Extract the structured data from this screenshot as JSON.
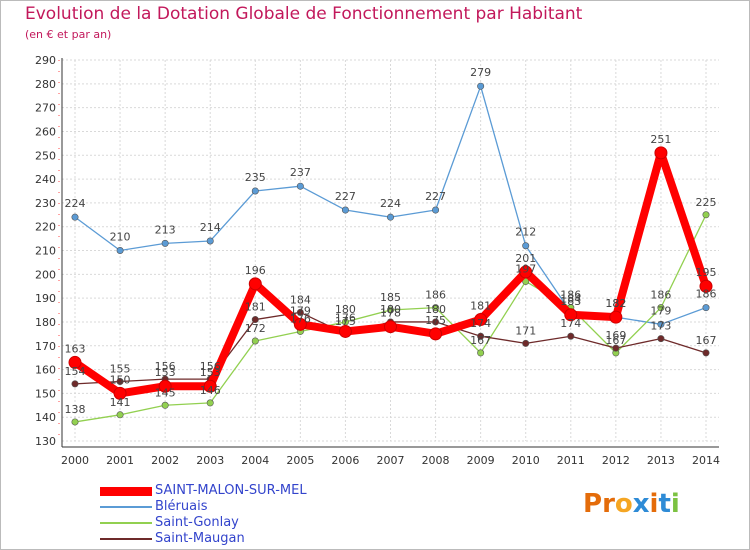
{
  "header": {
    "title": "Evolution de la Dotation Globale de Fonctionnement par Habitant",
    "subtitle": "(en € et par an)"
  },
  "logo": {
    "text": "Proxiti",
    "colors": [
      "#e46c0a",
      "#e46c0a",
      "#f5a623",
      "#2e8bd6",
      "#e46c0a",
      "#2e8bd6",
      "#7cc242"
    ]
  },
  "chart_data": {
    "type": "line",
    "x": [
      "2000",
      "2001",
      "2002",
      "2003",
      "2004",
      "2005",
      "2006",
      "2007",
      "2008",
      "2009",
      "2010",
      "2011",
      "2012",
      "2013",
      "2014"
    ],
    "ylim": [
      130,
      290
    ],
    "yticks": [
      130,
      140,
      150,
      160,
      170,
      180,
      190,
      200,
      210,
      220,
      230,
      240,
      250,
      260,
      270,
      280,
      290
    ],
    "grid": true,
    "legend_position": "bottom-left",
    "series": [
      {
        "name": "SAINT-MALON-SUR-MEL",
        "color": "#ff0000",
        "values": [
          163,
          150,
          153,
          153,
          196,
          179,
          176,
          178,
          175,
          181,
          201,
          183,
          182,
          251,
          195
        ],
        "labels": [
          "163",
          "150",
          "153",
          "153",
          "196",
          "179",
          "176",
          "178",
          "175",
          "181",
          "201",
          "183",
          "182",
          "251",
          "195"
        ]
      },
      {
        "name": "Bléruais",
        "color": "#5b9bd5",
        "values": [
          224,
          210,
          213,
          214,
          235,
          237,
          227,
          224,
          227,
          279,
          212,
          184,
          182,
          179,
          186
        ],
        "labels": [
          "224",
          "210",
          "213",
          "214",
          "235",
          "237",
          "227",
          "224",
          "227",
          "279",
          "212",
          "184",
          "182",
          "179",
          "186"
        ]
      },
      {
        "name": "Saint-Gonlay",
        "color": "#92d050",
        "values": [
          138,
          141,
          145,
          146,
          172,
          176,
          180,
          185,
          186,
          167,
          197,
          186,
          167,
          186,
          225
        ],
        "labels": [
          "138",
          "141",
          "145",
          "146",
          "172",
          "176",
          "180",
          "185",
          "186",
          "167",
          "197",
          "186",
          "167",
          "186",
          "225"
        ]
      },
      {
        "name": "Saint-Maugan",
        "color": "#6e2a2a",
        "values": [
          154,
          155,
          156,
          156,
          181,
          184,
          175,
          180,
          180,
          174,
          171,
          174,
          169,
          173,
          167
        ],
        "labels": [
          "154",
          "155",
          "156",
          "156",
          "181",
          "184",
          "175",
          "180",
          "180",
          "174",
          "171",
          "174",
          "169",
          "173",
          "167"
        ]
      }
    ]
  }
}
